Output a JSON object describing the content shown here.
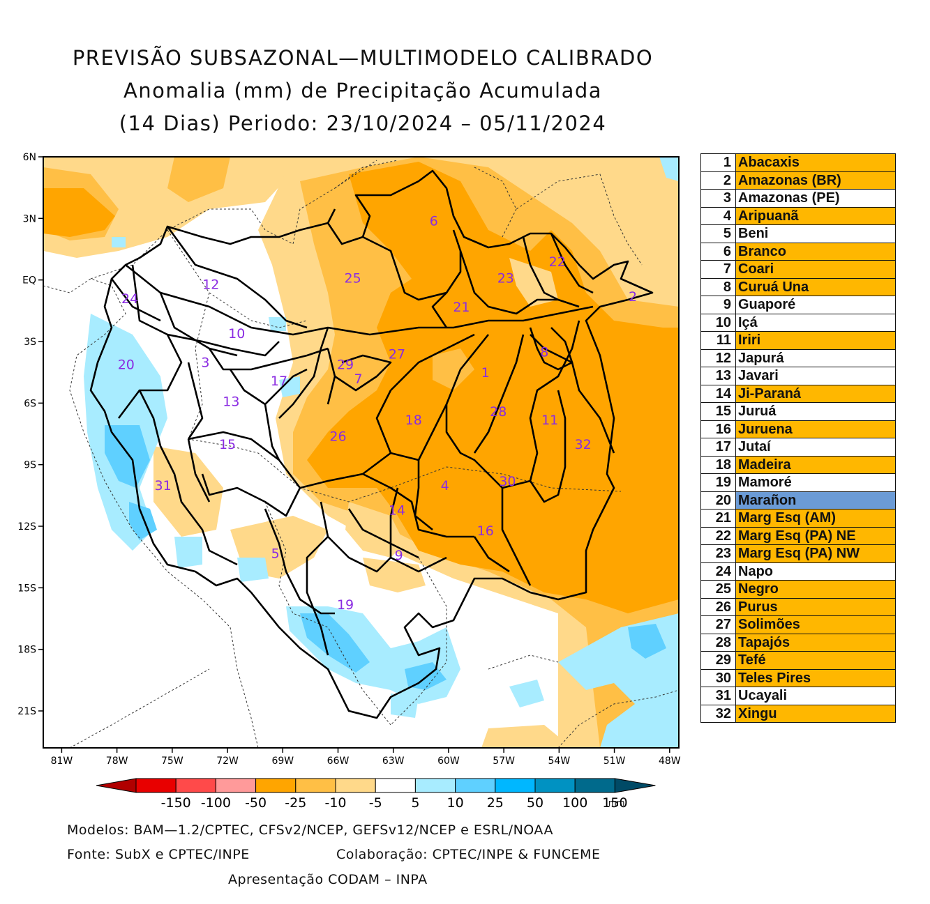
{
  "title": {
    "line1": "PREVISÃO SUBSAZONAL—MULTIMODELO CALIBRADO",
    "line2": "Anomalia (mm) de Precipitação Acumulada",
    "line3": "(14 Dias) Periodo: 23/10/2024 – 05/11/2024"
  },
  "map": {
    "lat_labels": [
      "6N",
      "3N",
      "EQ",
      "3S",
      "6S",
      "9S",
      "12S",
      "15S",
      "18S",
      "21S"
    ],
    "lon_labels": [
      "81W",
      "78W",
      "75W",
      "72W",
      "69W",
      "66W",
      "63W",
      "60W",
      "57W",
      "54W",
      "51W",
      "48W"
    ],
    "basin_labels": [
      {
        "id": "6",
        "lon": -60.8,
        "lat": 2.9
      },
      {
        "id": "22",
        "lon": -54.1,
        "lat": 0.9
      },
      {
        "id": "23",
        "lon": -56.9,
        "lat": 0.1
      },
      {
        "id": "25",
        "lon": -65.2,
        "lat": 0.1
      },
      {
        "id": "12",
        "lon": -72.9,
        "lat": -0.2
      },
      {
        "id": "2",
        "lon": -50.0,
        "lat": -0.8
      },
      {
        "id": "24",
        "lon": -77.3,
        "lat": -0.9
      },
      {
        "id": "21",
        "lon": -59.3,
        "lat": -1.3
      },
      {
        "id": "10",
        "lon": -71.5,
        "lat": -2.6
      },
      {
        "id": "27",
        "lon": -62.8,
        "lat": -3.6
      },
      {
        "id": "8",
        "lon": -54.8,
        "lat": -3.5
      },
      {
        "id": "3",
        "lon": -73.2,
        "lat": -4.0
      },
      {
        "id": "29",
        "lon": -65.6,
        "lat": -4.1
      },
      {
        "id": "20",
        "lon": -77.5,
        "lat": -4.1
      },
      {
        "id": "1",
        "lon": -58.0,
        "lat": -4.5
      },
      {
        "id": "17",
        "lon": -69.2,
        "lat": -4.9
      },
      {
        "id": "7",
        "lon": -64.9,
        "lat": -4.8
      },
      {
        "id": "13",
        "lon": -71.8,
        "lat": -5.9
      },
      {
        "id": "28",
        "lon": -57.3,
        "lat": -6.4
      },
      {
        "id": "18",
        "lon": -61.9,
        "lat": -6.8
      },
      {
        "id": "11",
        "lon": -54.5,
        "lat": -6.8
      },
      {
        "id": "26",
        "lon": -66.0,
        "lat": -7.6
      },
      {
        "id": "15",
        "lon": -72.0,
        "lat": -8.0
      },
      {
        "id": "32",
        "lon": -52.7,
        "lat": -8.0
      },
      {
        "id": "30",
        "lon": -56.8,
        "lat": -9.8
      },
      {
        "id": "31",
        "lon": -75.5,
        "lat": -10.0
      },
      {
        "id": "4",
        "lon": -60.2,
        "lat": -10.0
      },
      {
        "id": "14",
        "lon": -62.8,
        "lat": -11.2
      },
      {
        "id": "16",
        "lon": -58.0,
        "lat": -12.2
      },
      {
        "id": "5",
        "lon": -69.4,
        "lat": -13.3
      },
      {
        "id": "9",
        "lon": -62.7,
        "lat": -13.4
      },
      {
        "id": "19",
        "lon": -65.6,
        "lat": -15.8
      }
    ]
  },
  "colorbar": {
    "labels": [
      "-150",
      "-100",
      "-50",
      "-25",
      "-10",
      "-5",
      "5",
      "10",
      "25",
      "50",
      "100",
      "150"
    ],
    "unit": "mm",
    "colors": [
      "#e80000",
      "#ff4a4a",
      "#ff9a9a",
      "#ffa500",
      "#ffbf45",
      "#ffd98a",
      "#ffffff",
      "#a8ecff",
      "#5fd0ff",
      "#00b7ff",
      "#0092c2",
      "#006a8c",
      "#004a66"
    ],
    "low_end_color": "#b00000"
  },
  "legend": [
    {
      "num": "1",
      "name": "Abacaxis",
      "cat": "above"
    },
    {
      "num": "2",
      "name": "Amazonas (BR)",
      "cat": "above"
    },
    {
      "num": "3",
      "name": "Amazonas (PE)",
      "cat": "normal"
    },
    {
      "num": "4",
      "name": "Aripuanã",
      "cat": "above"
    },
    {
      "num": "5",
      "name": "Beni",
      "cat": "normal"
    },
    {
      "num": "6",
      "name": "Branco",
      "cat": "above"
    },
    {
      "num": "7",
      "name": "Coari",
      "cat": "above"
    },
    {
      "num": "8",
      "name": "Curuá Una",
      "cat": "above"
    },
    {
      "num": "9",
      "name": "Guaporé",
      "cat": "normal"
    },
    {
      "num": "10",
      "name": "Içá",
      "cat": "normal"
    },
    {
      "num": "11",
      "name": "Iriri",
      "cat": "above"
    },
    {
      "num": "12",
      "name": "Japurá",
      "cat": "normal"
    },
    {
      "num": "13",
      "name": "Javari",
      "cat": "normal"
    },
    {
      "num": "14",
      "name": "Ji-Paraná",
      "cat": "above"
    },
    {
      "num": "15",
      "name": "Juruá",
      "cat": "normal"
    },
    {
      "num": "16",
      "name": "Juruena",
      "cat": "above"
    },
    {
      "num": "17",
      "name": "Jutaí",
      "cat": "normal"
    },
    {
      "num": "18",
      "name": "Madeira",
      "cat": "above"
    },
    {
      "num": "19",
      "name": "Mamoré",
      "cat": "normal"
    },
    {
      "num": "20",
      "name": "Marañon",
      "cat": "below"
    },
    {
      "num": "21",
      "name": "Marg Esq (AM)",
      "cat": "above"
    },
    {
      "num": "22",
      "name": "Marg Esq (PA) NE",
      "cat": "above"
    },
    {
      "num": "23",
      "name": "Marg Esq (PA) NW",
      "cat": "above"
    },
    {
      "num": "24",
      "name": "Napo",
      "cat": "normal"
    },
    {
      "num": "25",
      "name": "Negro",
      "cat": "above"
    },
    {
      "num": "26",
      "name": "Purus",
      "cat": "above"
    },
    {
      "num": "27",
      "name": "Solimões",
      "cat": "above"
    },
    {
      "num": "28",
      "name": "Tapajós",
      "cat": "above"
    },
    {
      "num": "29",
      "name": "Tefé",
      "cat": "above"
    },
    {
      "num": "30",
      "name": "Teles Pires",
      "cat": "above"
    },
    {
      "num": "31",
      "name": "Ucayali",
      "cat": "normal"
    },
    {
      "num": "32",
      "name": "Xingu",
      "cat": "above"
    }
  ],
  "footer": {
    "models": "Modelos: BAM—1.2/CPTEC, CFSv2/NCEP, GEFSv12/NCEP e ESRL/NOAA",
    "source": "Fonte: SubX e CPTEC/INPE",
    "collab": "Colaboração: CPTEC/INPE & FUNCEME",
    "presentation": "Apresentação CODAM – INPA"
  }
}
